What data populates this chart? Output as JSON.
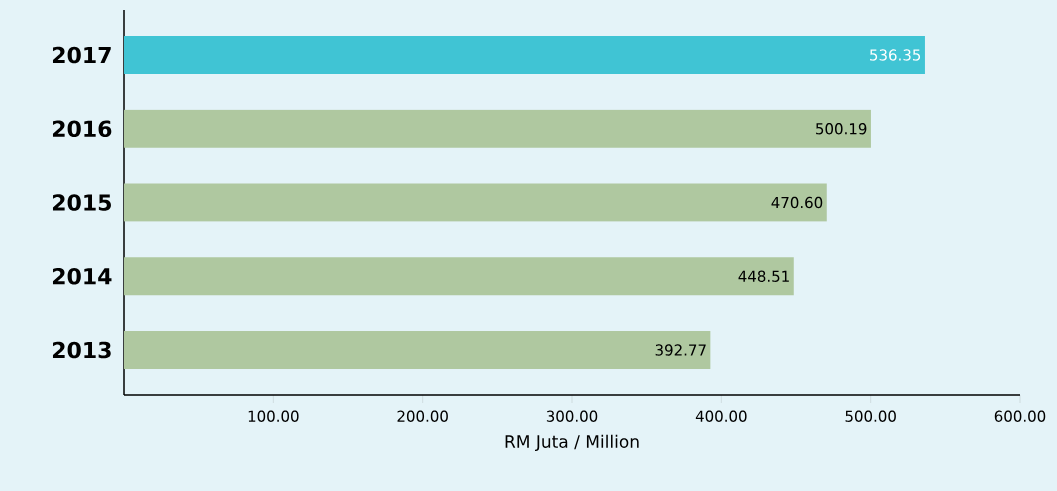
{
  "chart_data": {
    "type": "bar",
    "orientation": "horizontal",
    "categories": [
      "2017",
      "2016",
      "2015",
      "2014",
      "2013"
    ],
    "values": [
      536.35,
      500.19,
      470.6,
      448.51,
      392.77
    ],
    "colors": [
      "#40c4d4",
      "#afc8a0",
      "#afc8a0",
      "#afc8a0",
      "#afc8a0"
    ],
    "value_labels": [
      "536.35",
      "500.19",
      "470.60",
      "448.51",
      "392.77"
    ],
    "xlim": [
      0,
      600
    ],
    "xticks": [
      {
        "value": 100,
        "label": "100.00"
      },
      {
        "value": 200,
        "label": "200.00"
      },
      {
        "value": 300,
        "label": "300.00"
      },
      {
        "value": 400,
        "label": "400.00"
      },
      {
        "value": 500,
        "label": "500.00"
      },
      {
        "value": 600,
        "label": "600.00"
      }
    ],
    "xlabel": "RM Juta / Million"
  }
}
